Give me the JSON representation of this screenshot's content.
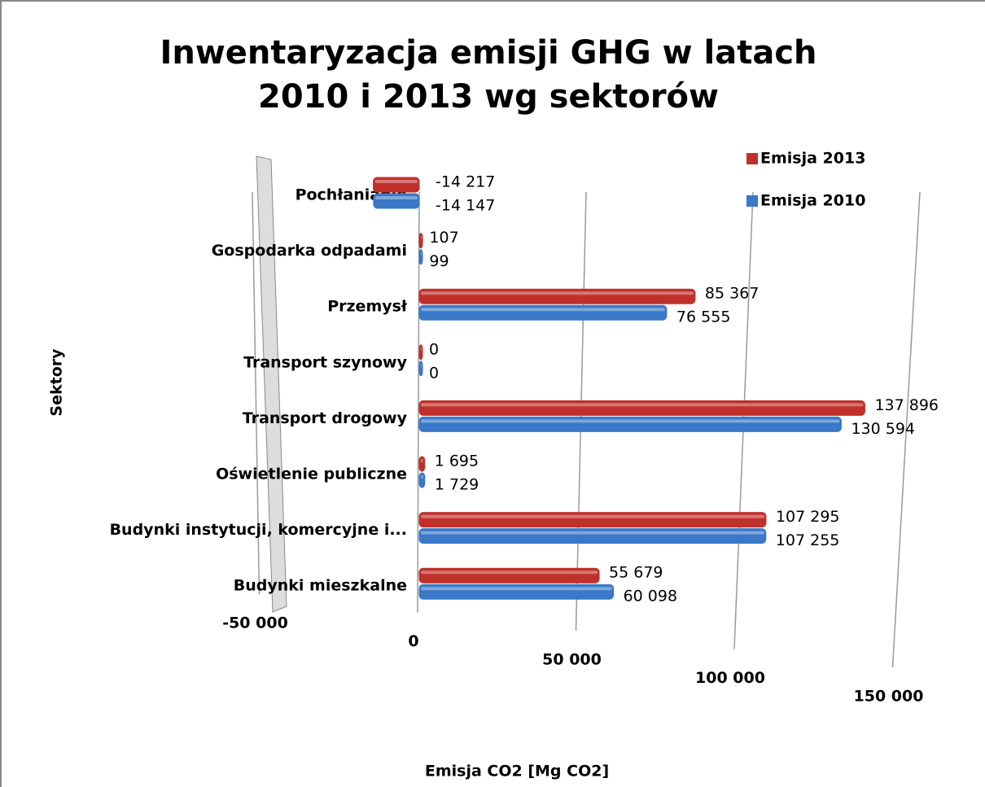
{
  "chart_data": {
    "type": "bar",
    "orientation": "horizontal",
    "title": "Inwentaryzacja emisji GHG w latach 2010 i 2013 wg sektorów",
    "x_label": "Emisja CO2 [Mg CO2]",
    "y_label": "Sektory",
    "categories": [
      "Pochłanianie",
      "Gospodarka odpadami",
      "Przemysł",
      "Transport szynowy",
      "Transport drogowy",
      "Oświetlenie publiczne",
      "Budynki instytucji, komercyjne i...",
      "Budynki mieszkalne"
    ],
    "series": [
      {
        "name": "Emisja 2013",
        "color": "#c0302a",
        "values": [
          -14217,
          107,
          85367,
          0,
          137896,
          1695,
          107295,
          55679
        ],
        "value_labels": [
          "-14 217",
          "107",
          "85 367",
          "0",
          "137 896",
          "1 695",
          "107 295",
          "55 679"
        ]
      },
      {
        "name": "Emisja 2010",
        "color": "#3a78c8",
        "values": [
          -14147,
          99,
          76555,
          0,
          130594,
          1729,
          107255,
          60098
        ],
        "value_labels": [
          "-14 147",
          "99",
          "76 555",
          "0",
          "130 594",
          "1 729",
          "107 255",
          "60 098"
        ]
      }
    ],
    "xlim": [
      -50000,
      150000
    ],
    "xticks": [
      {
        "value": -50000,
        "label": "-50 000"
      },
      0,
      {
        "value": 50000,
        "label": "50 000"
      },
      {
        "value": 100000,
        "label": "100 000"
      },
      {
        "value": 150000,
        "label": "150 000"
      }
    ],
    "grid": true,
    "legend": "top-right"
  }
}
